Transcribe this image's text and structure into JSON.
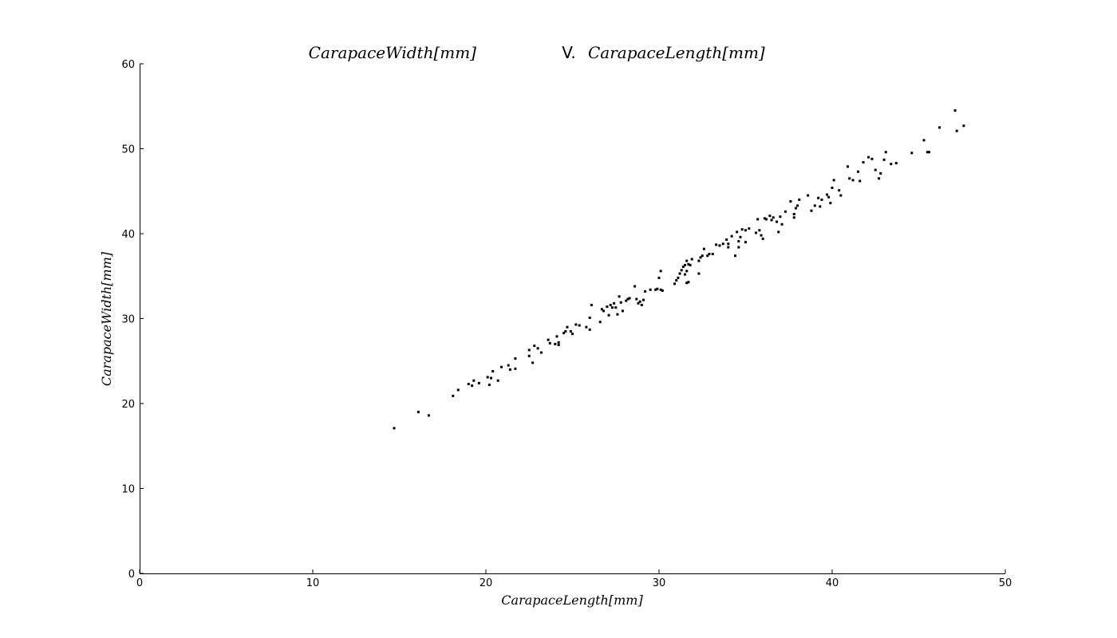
{
  "chart_data": {
    "type": "scatter",
    "title_left": "CarapaceWidth[mm]",
    "title_sep": "V.",
    "title_right": "CarapaceLength[mm]",
    "xlabel": "CarapaceLength[mm]",
    "ylabel": "CarapaceWidth[mm]",
    "xlim": [
      0,
      50
    ],
    "ylim": [
      0,
      60
    ],
    "xticks": [
      "0",
      "10",
      "20",
      "30",
      "40",
      "50"
    ],
    "yticks": [
      "0",
      "10",
      "20",
      "30",
      "40",
      "50",
      "60"
    ],
    "grid": false,
    "legend": "none",
    "marker_color": "#000000",
    "series": [
      {
        "x": [
          14.7,
          16.1,
          16.7,
          18.1,
          18.4,
          19.0,
          19.2,
          19.3,
          19.6,
          20.1,
          20.2,
          20.3,
          20.4,
          20.7,
          20.9,
          21.3,
          21.4,
          21.7,
          21.7,
          22.5,
          22.5,
          22.7,
          22.8,
          23.0,
          23.2,
          23.6,
          23.7,
          24.0,
          24.1,
          24.2,
          24.2,
          24.5,
          24.6,
          24.7,
          24.9,
          25.0,
          25.2,
          25.4,
          25.8,
          26.0,
          26.0,
          26.1,
          26.6,
          26.7,
          26.8,
          27.0,
          27.1,
          27.2,
          27.3,
          27.4,
          27.5,
          27.6,
          27.7,
          27.8,
          27.9,
          28.1,
          28.2,
          28.3,
          28.6,
          28.7,
          28.8,
          28.9,
          29.0,
          29.1,
          29.2,
          29.5,
          29.8,
          29.9,
          30.0,
          30.1,
          30.1,
          30.2,
          30.9,
          31.0,
          31.1,
          31.2,
          31.3,
          31.4,
          31.5,
          31.5,
          31.6,
          31.6,
          31.6,
          31.7,
          31.7,
          31.8,
          31.9,
          32.3,
          32.3,
          32.4,
          32.5,
          32.6,
          32.8,
          32.9,
          33.1,
          33.3,
          33.5,
          33.7,
          33.9,
          34.0,
          34.0,
          34.2,
          34.4,
          34.5,
          34.6,
          34.6,
          34.7,
          34.8,
          35.0,
          35.0,
          35.2,
          35.6,
          35.7,
          35.8,
          35.9,
          36.0,
          36.1,
          36.2,
          36.4,
          36.5,
          36.6,
          36.8,
          36.9,
          37.0,
          37.1,
          37.3,
          37.6,
          37.8,
          37.8,
          37.9,
          38.0,
          38.1,
          38.6,
          38.8,
          39.0,
          39.2,
          39.3,
          39.4,
          39.7,
          39.8,
          39.9,
          40.0,
          40.1,
          40.4,
          40.5,
          40.9,
          41.0,
          41.2,
          41.5,
          41.6,
          41.8,
          42.1,
          42.3,
          42.5,
          42.7,
          42.8,
          43.0,
          43.1,
          43.4,
          43.7,
          44.6,
          45.3,
          45.5,
          45.6,
          46.2,
          47.1,
          47.2,
          47.6
        ],
        "y": [
          17.1,
          19.0,
          18.6,
          20.9,
          21.6,
          22.3,
          22.1,
          22.7,
          22.4,
          23.1,
          22.2,
          23.0,
          23.8,
          22.7,
          24.3,
          24.5,
          24.0,
          24.1,
          25.3,
          25.6,
          26.3,
          24.8,
          26.8,
          26.5,
          26.0,
          27.5,
          27.1,
          27.0,
          27.9,
          27.2,
          26.9,
          28.3,
          28.5,
          29.0,
          28.5,
          28.2,
          29.3,
          29.2,
          29.0,
          28.7,
          30.1,
          31.6,
          29.6,
          31.1,
          30.9,
          31.4,
          30.4,
          31.6,
          31.3,
          31.8,
          31.3,
          30.5,
          32.6,
          31.9,
          30.9,
          32.1,
          32.3,
          32.4,
          33.8,
          32.3,
          31.8,
          32.0,
          31.6,
          32.2,
          33.2,
          33.4,
          33.4,
          33.5,
          34.8,
          33.4,
          35.6,
          33.3,
          34.1,
          34.5,
          34.8,
          35.3,
          35.7,
          36.1,
          36.3,
          35.2,
          34.2,
          35.6,
          36.8,
          34.3,
          36.4,
          36.3,
          37.0,
          35.3,
          36.8,
          37.2,
          37.4,
          38.2,
          37.4,
          37.6,
          37.6,
          38.7,
          38.6,
          38.8,
          39.3,
          38.8,
          38.4,
          39.7,
          37.4,
          40.2,
          39.1,
          38.4,
          39.6,
          40.5,
          40.4,
          39.0,
          40.6,
          40.1,
          41.7,
          40.4,
          39.8,
          39.4,
          41.8,
          41.7,
          42.1,
          41.6,
          41.9,
          41.4,
          40.2,
          42.0,
          41.1,
          42.6,
          43.8,
          41.9,
          42.3,
          43.0,
          43.3,
          44.0,
          44.5,
          42.7,
          43.3,
          44.2,
          43.2,
          44.0,
          44.6,
          44.3,
          43.6,
          45.4,
          46.3,
          45.1,
          44.5,
          47.9,
          46.5,
          46.3,
          47.3,
          46.2,
          48.4,
          49.0,
          48.8,
          47.5,
          46.5,
          47.1,
          48.7,
          49.6,
          48.2,
          48.3,
          49.5,
          51.0,
          49.6,
          49.6,
          52.5,
          54.5,
          52.1,
          52.7
        ]
      }
    ]
  }
}
